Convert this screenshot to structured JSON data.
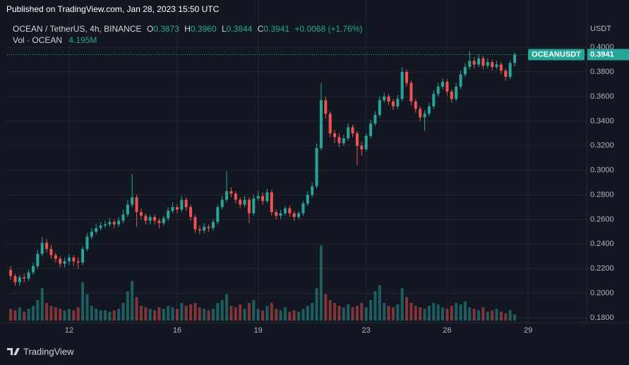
{
  "header": "Published on TradingView.com, Jan 28, 2023 15:50 UTC",
  "footer": "TradingView",
  "chart_data": {
    "type": "candlestick",
    "symbol": "OCEAN / TetherUS, 4h, BINANCE",
    "legend": {
      "o_key": "O",
      "o": "0.3873",
      "h_key": "H",
      "h": "0.3960",
      "l_key": "L",
      "l": "0.3844",
      "c_key": "C",
      "c": "0.3941",
      "change": "+0.0068 (+1.76%)"
    },
    "volume_label": "Vol · OCEAN",
    "volume_value": "4.195M",
    "price_tag": "OCEANUSDT",
    "y_unit": "USDT",
    "up_color": "#26a69a",
    "down_color": "#ef5350",
    "grid": true,
    "xlim": [
      9.7,
      31.14
    ],
    "ylim": [
      0.176,
      0.4213
    ],
    "vlim": [
      0,
      200
    ],
    "xticks": [
      12,
      16,
      19,
      23,
      26,
      29
    ],
    "yticks": [
      {
        "value": 0.18,
        "label": "0.1800"
      },
      {
        "value": 0.2,
        "label": "0.2000"
      },
      {
        "value": 0.22,
        "label": "0.2200"
      },
      {
        "value": 0.24,
        "label": "0.2400"
      },
      {
        "value": 0.26,
        "label": "0.2600"
      },
      {
        "value": 0.28,
        "label": "0.2800"
      },
      {
        "value": 0.3,
        "label": "0.3000"
      },
      {
        "value": 0.32,
        "label": "0.3200"
      },
      {
        "value": 0.34,
        "label": "0.3400"
      },
      {
        "value": 0.36,
        "label": "0.3600"
      },
      {
        "value": 0.38,
        "label": "0.3800"
      },
      {
        "value": 0.4,
        "label": "0.4000"
      }
    ],
    "x": [
      9.833,
      10,
      10.167,
      10.333,
      10.5,
      10.667,
      10.833,
      11,
      11.167,
      11.333,
      11.5,
      11.667,
      11.833,
      12,
      12.167,
      12.333,
      12.5,
      12.667,
      12.833,
      13,
      13.167,
      13.333,
      13.5,
      13.667,
      13.833,
      14,
      14.167,
      14.333,
      14.5,
      14.667,
      14.833,
      15,
      15.167,
      15.333,
      15.5,
      15.667,
      15.833,
      16,
      16.167,
      16.333,
      16.5,
      16.667,
      16.833,
      17,
      17.167,
      17.333,
      17.5,
      17.667,
      17.833,
      18,
      18.167,
      18.333,
      18.5,
      18.667,
      18.833,
      19,
      19.167,
      19.333,
      19.5,
      19.667,
      19.833,
      20,
      20.167,
      20.333,
      20.5,
      20.667,
      20.833,
      21,
      21.167,
      21.333,
      21.5,
      21.667,
      21.833,
      22,
      22.167,
      22.333,
      22.5,
      22.667,
      22.833,
      23,
      23.167,
      23.333,
      23.5,
      23.667,
      23.833,
      24,
      24.167,
      24.333,
      24.5,
      24.667,
      24.833,
      25,
      25.167,
      25.333,
      25.5,
      25.667,
      25.833,
      26,
      26.167,
      26.333,
      26.5,
      26.667,
      26.833,
      27,
      27.167,
      27.333,
      27.5,
      27.667,
      27.833,
      28,
      28.167,
      28.333,
      28.5
    ],
    "open": [
      0.219,
      0.214,
      0.209,
      0.213,
      0.212,
      0.217,
      0.222,
      0.232,
      0.241,
      0.236,
      0.231,
      0.228,
      0.224,
      0.226,
      0.229,
      0.226,
      0.225,
      0.236,
      0.246,
      0.25,
      0.253,
      0.255,
      0.256,
      0.258,
      0.256,
      0.259,
      0.264,
      0.272,
      0.278,
      0.266,
      0.263,
      0.259,
      0.262,
      0.259,
      0.257,
      0.261,
      0.267,
      0.27,
      0.268,
      0.276,
      0.27,
      0.262,
      0.252,
      0.251,
      0.254,
      0.253,
      0.258,
      0.27,
      0.276,
      0.283,
      0.281,
      0.276,
      0.272,
      0.276,
      0.265,
      0.277,
      0.279,
      0.275,
      0.282,
      0.266,
      0.263,
      0.265,
      0.269,
      0.265,
      0.262,
      0.265,
      0.273,
      0.28,
      0.287,
      0.318,
      0.357,
      0.346,
      0.33,
      0.327,
      0.322,
      0.326,
      0.335,
      0.33,
      0.32,
      0.317,
      0.328,
      0.338,
      0.345,
      0.357,
      0.36,
      0.356,
      0.352,
      0.358,
      0.38,
      0.371,
      0.356,
      0.35,
      0.343,
      0.346,
      0.352,
      0.362,
      0.368,
      0.372,
      0.364,
      0.358,
      0.368,
      0.378,
      0.384,
      0.389,
      0.386,
      0.391,
      0.385,
      0.388,
      0.384,
      0.386,
      0.381,
      0.376,
      0.3873
    ],
    "high": [
      0.222,
      0.216,
      0.215,
      0.216,
      0.219,
      0.225,
      0.235,
      0.246,
      0.244,
      0.239,
      0.233,
      0.23,
      0.229,
      0.232,
      0.231,
      0.229,
      0.238,
      0.249,
      0.253,
      0.256,
      0.258,
      0.259,
      0.261,
      0.26,
      0.262,
      0.268,
      0.276,
      0.297,
      0.28,
      0.269,
      0.265,
      0.264,
      0.264,
      0.261,
      0.263,
      0.27,
      0.274,
      0.272,
      0.279,
      0.278,
      0.272,
      0.264,
      0.255,
      0.257,
      0.256,
      0.26,
      0.272,
      0.279,
      0.299,
      0.286,
      0.283,
      0.278,
      0.279,
      0.278,
      0.28,
      0.283,
      0.282,
      0.285,
      0.284,
      0.268,
      0.268,
      0.271,
      0.271,
      0.267,
      0.267,
      0.275,
      0.283,
      0.29,
      0.322,
      0.371,
      0.36,
      0.348,
      0.333,
      0.33,
      0.329,
      0.338,
      0.337,
      0.332,
      0.323,
      0.33,
      0.341,
      0.348,
      0.36,
      0.363,
      0.362,
      0.358,
      0.361,
      0.384,
      0.382,
      0.373,
      0.358,
      0.352,
      0.349,
      0.355,
      0.365,
      0.371,
      0.375,
      0.374,
      0.366,
      0.371,
      0.381,
      0.387,
      0.397,
      0.392,
      0.394,
      0.393,
      0.391,
      0.39,
      0.389,
      0.388,
      0.383,
      0.389,
      0.396
    ],
    "low": [
      0.211,
      0.206,
      0.206,
      0.209,
      0.21,
      0.215,
      0.22,
      0.23,
      0.233,
      0.228,
      0.225,
      0.221,
      0.221,
      0.223,
      0.222,
      0.22,
      0.223,
      0.234,
      0.244,
      0.248,
      0.251,
      0.253,
      0.254,
      0.253,
      0.254,
      0.257,
      0.262,
      0.27,
      0.254,
      0.26,
      0.256,
      0.256,
      0.256,
      0.253,
      0.255,
      0.259,
      0.265,
      0.265,
      0.266,
      0.267,
      0.259,
      0.249,
      0.248,
      0.249,
      0.25,
      0.251,
      0.256,
      0.268,
      0.274,
      0.278,
      0.273,
      0.269,
      0.27,
      0.257,
      0.263,
      0.275,
      0.272,
      0.273,
      0.263,
      0.26,
      0.26,
      0.263,
      0.262,
      0.259,
      0.26,
      0.263,
      0.271,
      0.278,
      0.285,
      0.316,
      0.342,
      0.327,
      0.322,
      0.319,
      0.32,
      0.324,
      0.327,
      0.304,
      0.312,
      0.315,
      0.326,
      0.336,
      0.343,
      0.355,
      0.353,
      0.349,
      0.35,
      0.356,
      0.368,
      0.353,
      0.347,
      0.34,
      0.332,
      0.344,
      0.35,
      0.36,
      0.366,
      0.361,
      0.355,
      0.356,
      0.366,
      0.376,
      0.382,
      0.383,
      0.384,
      0.382,
      0.383,
      0.381,
      0.382,
      0.378,
      0.373,
      0.374,
      0.3844
    ],
    "close": [
      0.214,
      0.209,
      0.213,
      0.212,
      0.217,
      0.222,
      0.232,
      0.241,
      0.236,
      0.231,
      0.228,
      0.224,
      0.226,
      0.229,
      0.226,
      0.225,
      0.236,
      0.246,
      0.25,
      0.253,
      0.255,
      0.256,
      0.258,
      0.256,
      0.259,
      0.264,
      0.272,
      0.278,
      0.266,
      0.263,
      0.259,
      0.262,
      0.259,
      0.257,
      0.261,
      0.267,
      0.27,
      0.268,
      0.276,
      0.27,
      0.262,
      0.252,
      0.251,
      0.254,
      0.253,
      0.258,
      0.27,
      0.276,
      0.283,
      0.281,
      0.276,
      0.272,
      0.276,
      0.265,
      0.277,
      0.279,
      0.275,
      0.282,
      0.266,
      0.263,
      0.265,
      0.269,
      0.265,
      0.262,
      0.265,
      0.273,
      0.28,
      0.287,
      0.318,
      0.357,
      0.346,
      0.33,
      0.327,
      0.322,
      0.326,
      0.335,
      0.33,
      0.32,
      0.317,
      0.328,
      0.338,
      0.345,
      0.357,
      0.36,
      0.356,
      0.352,
      0.358,
      0.38,
      0.371,
      0.356,
      0.35,
      0.343,
      0.346,
      0.352,
      0.362,
      0.368,
      0.372,
      0.364,
      0.358,
      0.368,
      0.378,
      0.384,
      0.389,
      0.386,
      0.391,
      0.385,
      0.388,
      0.384,
      0.386,
      0.381,
      0.376,
      0.3873,
      0.3941
    ],
    "volume": [
      8,
      7,
      9,
      6,
      8,
      10,
      14,
      22,
      12,
      10,
      9,
      8,
      7,
      8,
      7,
      9,
      26,
      18,
      10,
      8,
      7,
      7,
      6,
      7,
      8,
      12,
      20,
      27,
      16,
      10,
      9,
      8,
      7,
      9,
      8,
      10,
      9,
      8,
      12,
      10,
      11,
      12,
      9,
      8,
      7,
      8,
      12,
      14,
      18,
      10,
      9,
      11,
      8,
      12,
      14,
      8,
      7,
      10,
      12,
      8,
      7,
      9,
      6,
      7,
      6,
      8,
      10,
      12,
      22,
      51,
      18,
      14,
      12,
      10,
      9,
      11,
      9,
      10,
      12,
      9,
      14,
      20,
      24,
      12,
      10,
      9,
      11,
      22,
      16,
      12,
      10,
      9,
      8,
      10,
      12,
      11,
      9,
      8,
      10,
      12,
      11,
      13,
      9,
      8,
      7,
      9,
      6,
      7,
      8,
      6,
      5,
      7,
      4.195
    ]
  }
}
